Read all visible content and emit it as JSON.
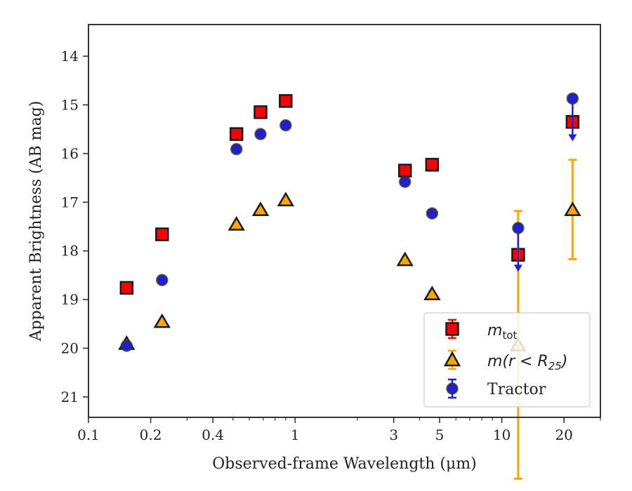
{
  "chart_data": {
    "type": "scatter",
    "title": "",
    "xlabel": "Observed-frame Wavelength (μm)",
    "ylabel": "Apparent Brightness (AB mag)",
    "xscale": "log",
    "xlim": [
      0.1,
      30
    ],
    "ylim": [
      21.42,
      13.35
    ],
    "y_inverted": true,
    "xticks": [
      0.1,
      0.2,
      0.4,
      1,
      3,
      5,
      10,
      20
    ],
    "xtick_labels": [
      "0.1",
      "0.2",
      "0.4",
      "1",
      "3",
      "5",
      "10",
      "20"
    ],
    "yticks": [
      14,
      15,
      16,
      17,
      18,
      19,
      20,
      21
    ],
    "ytick_labels": [
      "14",
      "15",
      "16",
      "17",
      "18",
      "19",
      "20",
      "21"
    ],
    "grid": false,
    "legend_position": "lower-right",
    "series": [
      {
        "name": "m_tot",
        "legend_main": "m",
        "legend_sub": "tot",
        "marker": "square",
        "color": "#ff0000",
        "edge_color": "#1a1a1a",
        "points": [
          {
            "x": 0.153,
            "y": 18.76,
            "err": 0
          },
          {
            "x": 0.227,
            "y": 17.66,
            "err": 0
          },
          {
            "x": 0.52,
            "y": 15.6,
            "err": 0
          },
          {
            "x": 0.68,
            "y": 15.15,
            "err": 0
          },
          {
            "x": 0.9,
            "y": 14.92,
            "err": 0
          },
          {
            "x": 3.4,
            "y": 16.35,
            "err": 0
          },
          {
            "x": 4.6,
            "y": 16.23,
            "err": 0
          },
          {
            "x": 12.0,
            "y": 18.08,
            "err": 0
          },
          {
            "x": 22.0,
            "y": 15.35,
            "err": 0
          }
        ]
      },
      {
        "name": "m(r < R25)",
        "legend_main": "m(r < R",
        "legend_sub": "25",
        "legend_tail": ")",
        "marker": "triangle",
        "color": "#ffa500",
        "edge_color": "#1a1a1a",
        "points": [
          {
            "x": 0.153,
            "y": 19.9,
            "err": 0
          },
          {
            "x": 0.227,
            "y": 19.45,
            "err": 0
          },
          {
            "x": 0.52,
            "y": 17.45,
            "err": 0
          },
          {
            "x": 0.68,
            "y": 17.15,
            "err": 0
          },
          {
            "x": 0.9,
            "y": 16.95,
            "err": 0
          },
          {
            "x": 3.4,
            "y": 18.18,
            "err": 0
          },
          {
            "x": 4.6,
            "y": 18.88,
            "err": 0
          },
          {
            "x": 12.0,
            "y": 19.93,
            "err": 2.75
          },
          {
            "x": 22.0,
            "y": 17.15,
            "err": 1.02
          }
        ]
      },
      {
        "name": "Tractor",
        "marker": "circle",
        "color": "#1f1fd6",
        "edge_color": "#333333",
        "points": [
          {
            "x": 0.153,
            "y": 19.95,
            "err": 0
          },
          {
            "x": 0.227,
            "y": 18.6,
            "err": 0
          },
          {
            "x": 0.52,
            "y": 15.91,
            "err": 0
          },
          {
            "x": 0.68,
            "y": 15.6,
            "err": 0
          },
          {
            "x": 0.9,
            "y": 15.42,
            "err": 0
          },
          {
            "x": 3.4,
            "y": 16.58,
            "err": 0
          },
          {
            "x": 4.6,
            "y": 17.23,
            "err": 0
          },
          {
            "x": 12.0,
            "y": 17.53,
            "err": 0,
            "upper_limit": true,
            "limit_to": 18.4
          },
          {
            "x": 22.0,
            "y": 14.87,
            "err": 0,
            "upper_limit": true,
            "limit_to": 15.72
          }
        ]
      }
    ]
  }
}
